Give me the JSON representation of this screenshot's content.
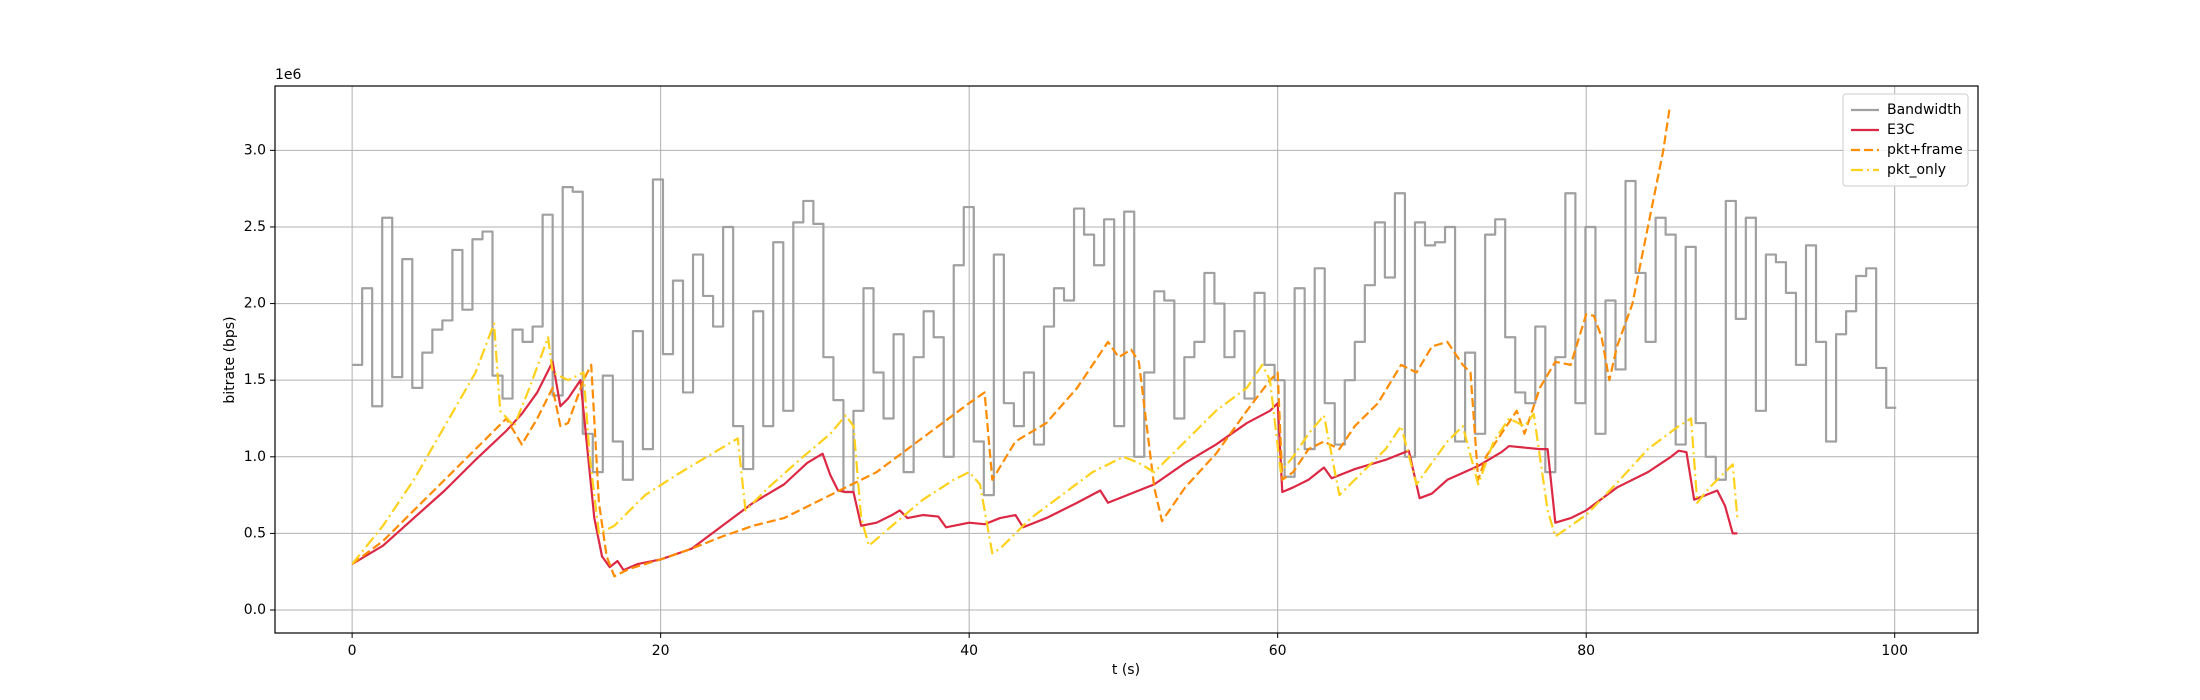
{
  "chart_data": {
    "type": "line",
    "xlabel": "t (s)",
    "ylabel": "bitrate (bps)",
    "offset_label": "1e6",
    "xlim": [
      -5,
      105.4
    ],
    "ylim": [
      -150000,
      3420000
    ],
    "xticks": [
      0,
      20,
      40,
      60,
      80,
      100
    ],
    "yticks": [
      {
        "value": 0,
        "label": "0.0"
      },
      {
        "value": 500000,
        "label": "0.5"
      },
      {
        "value": 1000000,
        "label": "1.0"
      },
      {
        "value": 1500000,
        "label": "1.5"
      },
      {
        "value": 2000000,
        "label": "2.0"
      },
      {
        "value": 2500000,
        "label": "2.5"
      },
      {
        "value": 3000000,
        "label": "3.0"
      }
    ],
    "grid": true,
    "legend": "upper right",
    "series": [
      {
        "name": "Bandwidth",
        "color": "#a0a0a0",
        "style": "solid",
        "drawstyle": "steps-post",
        "x": [
          0,
          0.65,
          1.3,
          1.95,
          2.6,
          3.25,
          3.9,
          4.55,
          5.2,
          5.85,
          6.5,
          7.15,
          7.8,
          8.45,
          9.1,
          9.75,
          10.4,
          11.05,
          11.7,
          12.35,
          13,
          13.65,
          14.3,
          14.95,
          15.6,
          16.25,
          16.9,
          17.55,
          18.2,
          18.85,
          19.5,
          20.15,
          20.8,
          21.45,
          22.1,
          22.75,
          23.4,
          24.05,
          24.7,
          25.35,
          26,
          26.65,
          27.3,
          27.95,
          28.6,
          29.25,
          29.9,
          30.55,
          31.2,
          31.85,
          32.5,
          33.15,
          33.8,
          34.45,
          35.1,
          35.75,
          36.4,
          37.05,
          37.7,
          38.35,
          39,
          39.65,
          40.3,
          40.95,
          41.6,
          42.25,
          42.9,
          43.55,
          44.2,
          44.85,
          45.5,
          46.15,
          46.8,
          47.45,
          48.1,
          48.75,
          49.4,
          50.05,
          50.7,
          51.35,
          52,
          52.65,
          53.3,
          53.95,
          54.6,
          55.25,
          55.9,
          56.55,
          57.2,
          57.85,
          58.5,
          59.15,
          59.8,
          60.45,
          61.1,
          61.75,
          62.4,
          63.05,
          63.7,
          64.35,
          65,
          65.65,
          66.3,
          66.95,
          67.6,
          68.25,
          68.9,
          69.55,
          70.2,
          70.85,
          71.5,
          72.15,
          72.8,
          73.45,
          74.1,
          74.75,
          75.4,
          76.05,
          76.7,
          77.35,
          78,
          78.65,
          79.3,
          79.95,
          80.6,
          81.25,
          81.9,
          82.55,
          83.2,
          83.85,
          84.5,
          85.15,
          85.8,
          86.45,
          87.1,
          87.75,
          88.4,
          89.05,
          89.7,
          90.35,
          91,
          91.65,
          92.3,
          92.95,
          93.6,
          94.25,
          94.9,
          95.55,
          96.2,
          96.85,
          97.5,
          98.15,
          98.8,
          99.45,
          100.1
        ],
        "values": [
          1600000,
          2100000,
          1330000,
          2560000,
          1520000,
          2290000,
          1450000,
          1680000,
          1830000,
          1890000,
          2350000,
          1960000,
          2420000,
          2470000,
          1530000,
          1380000,
          1830000,
          1750000,
          1850000,
          2580000,
          1400000,
          2760000,
          2730000,
          1150000,
          900000,
          1530000,
          1100000,
          850000,
          1820000,
          1050000,
          2810000,
          1670000,
          2150000,
          1420000,
          2320000,
          2050000,
          1850000,
          2500000,
          1200000,
          920000,
          1950000,
          1200000,
          2400000,
          1300000,
          2530000,
          2670000,
          2520000,
          1650000,
          1370000,
          770000,
          1300000,
          2100000,
          1550000,
          1250000,
          1800000,
          900000,
          1650000,
          1950000,
          1780000,
          1000000,
          2250000,
          2630000,
          1100000,
          750000,
          2320000,
          1350000,
          1200000,
          1550000,
          1080000,
          1850000,
          2100000,
          2020000,
          2620000,
          2450000,
          2250000,
          2550000,
          1200000,
          2600000,
          1000000,
          1550000,
          2080000,
          2020000,
          1250000,
          1650000,
          1750000,
          2200000,
          2000000,
          1650000,
          1820000,
          1380000,
          2070000,
          1600000,
          1500000,
          870000,
          2100000,
          1050000,
          2230000,
          1350000,
          1080000,
          1500000,
          1750000,
          2120000,
          2530000,
          2170000,
          2720000,
          1000000,
          2530000,
          2380000,
          2400000,
          2500000,
          1100000,
          1680000,
          1150000,
          2450000,
          2550000,
          1780000,
          1420000,
          1350000,
          1850000,
          900000,
          1650000,
          2720000,
          1350000,
          2500000,
          1150000,
          2020000,
          1570000,
          2800000,
          2200000,
          1750000,
          2560000,
          2450000,
          1080000,
          2370000,
          1220000,
          1000000,
          850000,
          2670000,
          1900000,
          2560000,
          1300000,
          2320000,
          2270000,
          2070000,
          1600000,
          2380000,
          1750000,
          1100000,
          1800000,
          1950000,
          2180000,
          2230000,
          1580000,
          1320000,
          1320000
        ]
      },
      {
        "name": "E3C",
        "color": "#dc2845",
        "style": "solid",
        "x": [
          0,
          2,
          4,
          6,
          8,
          10,
          11,
          12,
          13,
          13.5,
          14,
          14.8,
          15.2,
          15.7,
          16.2,
          16.7,
          17.2,
          17.6,
          18.5,
          20,
          22,
          24,
          26,
          28,
          29.5,
          30.5,
          31,
          31.5,
          32,
          32.5,
          33,
          34,
          35,
          35.5,
          36,
          37,
          38,
          38.5,
          40,
          41,
          42,
          43,
          43.5,
          45,
          47,
          48.5,
          49,
          50,
          52,
          54,
          56,
          58,
          59.5,
          60,
          60.3,
          61,
          62,
          63,
          63.5,
          65,
          67,
          68.5,
          69.2,
          70,
          71,
          73,
          74.5,
          75,
          77,
          77.5,
          78,
          79,
          80,
          82,
          84,
          85.5,
          86,
          86.5,
          87,
          88.5,
          89,
          89.5,
          89.8
        ],
        "values": [
          300000,
          420000,
          600000,
          780000,
          980000,
          1170000,
          1280000,
          1420000,
          1620000,
          1330000,
          1380000,
          1500000,
          1100000,
          600000,
          350000,
          280000,
          320000,
          260000,
          300000,
          330000,
          400000,
          550000,
          700000,
          820000,
          960000,
          1020000,
          880000,
          780000,
          770000,
          770000,
          550000,
          570000,
          620000,
          650000,
          600000,
          620000,
          610000,
          540000,
          570000,
          560000,
          600000,
          620000,
          540000,
          600000,
          700000,
          780000,
          700000,
          740000,
          820000,
          960000,
          1080000,
          1220000,
          1300000,
          1350000,
          770000,
          800000,
          850000,
          930000,
          860000,
          920000,
          980000,
          1040000,
          730000,
          760000,
          850000,
          940000,
          1030000,
          1070000,
          1050000,
          1050000,
          570000,
          600000,
          650000,
          800000,
          900000,
          1000000,
          1040000,
          1030000,
          720000,
          780000,
          680000,
          500000,
          500000
        ]
      },
      {
        "name": "pkt+frame",
        "color": "#ff8c00",
        "style": "dashed",
        "x": [
          0,
          2,
          4,
          6,
          8,
          10,
          11,
          12,
          13,
          13.5,
          14,
          15,
          15.5,
          16,
          16.5,
          17,
          18,
          20,
          22,
          24,
          26,
          28,
          30,
          32,
          34,
          36,
          38,
          40,
          41,
          41.5,
          43,
          45,
          47,
          49,
          49.7,
          50.5,
          51,
          52,
          52.5,
          54,
          56,
          58,
          59.5,
          60,
          60.3,
          61,
          62,
          63,
          64,
          65,
          66.5,
          68,
          69,
          70,
          71,
          72,
          72.5,
          73,
          73.5,
          74.5,
          75.5,
          76,
          77,
          78,
          79,
          80,
          80.5,
          81,
          81.5,
          82,
          83,
          84,
          85,
          85.4
        ],
        "values": [
          300000,
          450000,
          650000,
          850000,
          1050000,
          1250000,
          1080000,
          1250000,
          1450000,
          1200000,
          1220000,
          1500000,
          1600000,
          700000,
          350000,
          220000,
          270000,
          330000,
          400000,
          480000,
          550000,
          600000,
          700000,
          800000,
          900000,
          1050000,
          1200000,
          1350000,
          1420000,
          850000,
          1100000,
          1220000,
          1450000,
          1750000,
          1650000,
          1700000,
          1620000,
          800000,
          580000,
          800000,
          1020000,
          1300000,
          1500000,
          1550000,
          850000,
          900000,
          1050000,
          1100000,
          1050000,
          1200000,
          1350000,
          1600000,
          1550000,
          1720000,
          1750000,
          1600000,
          1550000,
          850000,
          1000000,
          1150000,
          1300000,
          1150000,
          1450000,
          1620000,
          1600000,
          1930000,
          1920000,
          1780000,
          1500000,
          1720000,
          2000000,
          2500000,
          3000000,
          3270000
        ]
      },
      {
        "name": "pkt_only",
        "color": "#ffd11a",
        "style": "dashdot",
        "x": [
          0,
          2,
          4,
          6,
          8,
          9.2,
          9.6,
          10.5,
          11.5,
          12.7,
          13,
          14,
          15,
          15.4,
          16,
          17,
          19,
          21,
          23,
          25,
          25.5,
          27,
          29,
          31,
          32,
          32.5,
          33,
          33.5,
          35,
          37,
          39,
          40,
          40.7,
          41.5,
          42,
          44,
          46,
          48,
          50,
          51,
          52,
          54,
          56,
          58,
          59,
          59.5,
          60.2,
          61,
          62,
          63,
          64,
          65,
          67,
          68,
          69,
          71,
          72,
          73,
          74,
          75,
          76,
          76.6,
          77.5,
          78,
          80,
          82,
          84,
          86,
          86.8,
          87.2,
          88,
          89.5,
          89.8
        ],
        "values": [
          300000,
          550000,
          850000,
          1200000,
          1550000,
          1870000,
          1300000,
          1200000,
          1450000,
          1780000,
          1550000,
          1500000,
          1550000,
          1000000,
          500000,
          550000,
          750000,
          880000,
          1000000,
          1120000,
          650000,
          800000,
          980000,
          1150000,
          1270000,
          1200000,
          600000,
          420000,
          550000,
          720000,
          850000,
          900000,
          820000,
          370000,
          400000,
          600000,
          750000,
          900000,
          1000000,
          960000,
          900000,
          1100000,
          1300000,
          1450000,
          1600000,
          1500000,
          900000,
          1000000,
          1150000,
          1270000,
          750000,
          850000,
          1050000,
          1200000,
          820000,
          1100000,
          1200000,
          820000,
          1100000,
          1250000,
          1200000,
          1280000,
          650000,
          480000,
          620000,
          830000,
          1050000,
          1200000,
          1250000,
          700000,
          800000,
          950000,
          600000
        ]
      }
    ]
  }
}
